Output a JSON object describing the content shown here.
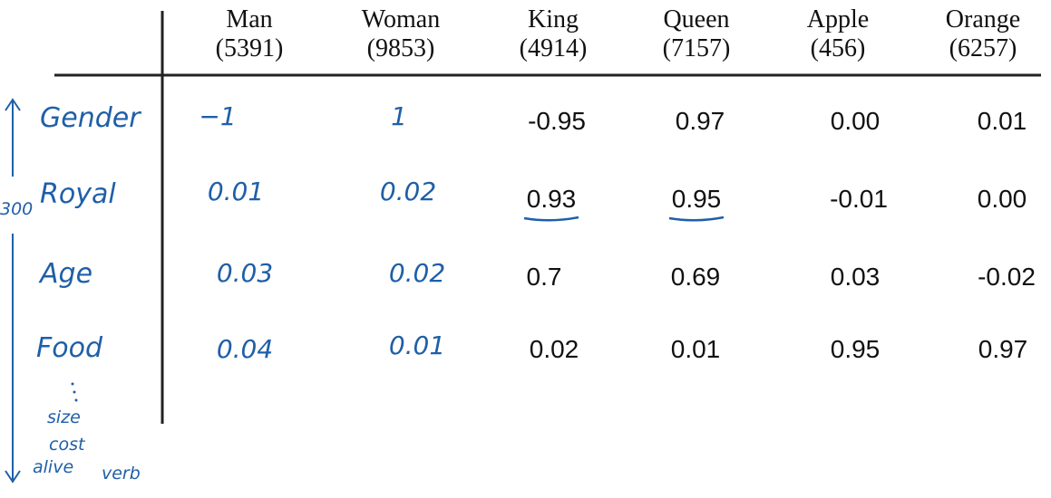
{
  "columns": [
    {
      "word": "Man",
      "index": "(5391)"
    },
    {
      "word": "Woman",
      "index": "(9853)"
    },
    {
      "word": "King",
      "index": "(4914)"
    },
    {
      "word": "Queen",
      "index": "(7157)"
    },
    {
      "word": "Apple",
      "index": "(456)"
    },
    {
      "word": "Orange",
      "index": "(6257)"
    }
  ],
  "rows": [
    {
      "feature": "Gender",
      "values": [
        "−1",
        "1",
        "-0.95",
        "0.97",
        "0.00",
        "0.01"
      ]
    },
    {
      "feature": "Royal",
      "values": [
        "0.01",
        "0.02",
        "0.93",
        "0.95",
        "-0.01",
        "0.00"
      ]
    },
    {
      "feature": "Age",
      "values": [
        "0.03",
        "0.02",
        "0.7",
        "0.69",
        "0.03",
        "-0.02"
      ]
    },
    {
      "feature": "Food",
      "values": [
        "0.04",
        "0.01",
        "0.02",
        "0.01",
        "0.95",
        "0.97"
      ]
    }
  ],
  "annotations": {
    "dimension_count": "300",
    "more_features": [
      "size",
      "cost",
      "alive",
      "verb"
    ]
  },
  "colors": {
    "ink": "#111111",
    "handwriting": "#1f5fa8"
  }
}
